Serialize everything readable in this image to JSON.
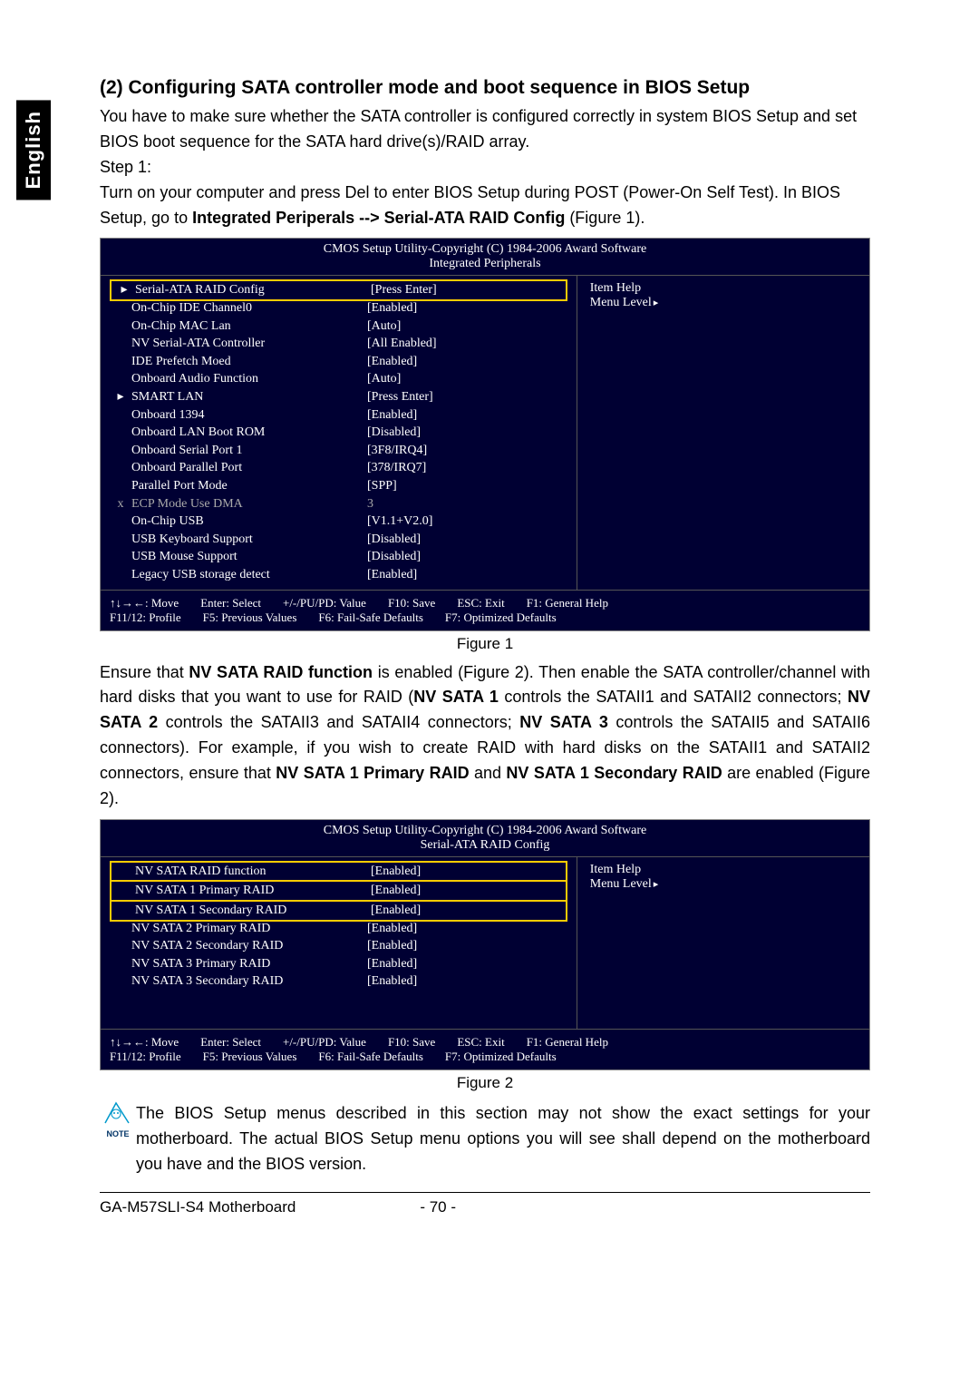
{
  "tab": "English",
  "section_title": "(2) Configuring SATA controller mode and boot sequence in BIOS Setup",
  "intro1": "You have to make sure whether the SATA controller is configured correctly in system BIOS Setup and set BIOS boot sequence for the SATA hard drive(s)/RAID array.",
  "step1": "Step 1:",
  "intro2a": "Turn on your computer and press Del to enter BIOS Setup during POST (Power-On Self Test). In BIOS Setup, go to ",
  "intro2b": "Integrated Periperals --> Serial-ATA RAID Config",
  "intro2c": " (Figure 1).",
  "bios1": {
    "header_line1": "CMOS Setup Utility-Copyright (C) 1984-2006 Award Software",
    "header_line2": "Integrated Peripherals",
    "help_title": "Item Help",
    "help_sub": "Menu Level",
    "rows": [
      {
        "ind": "▸",
        "label": "Serial-ATA RAID Config",
        "val": "[Press Enter]",
        "hl": true
      },
      {
        "ind": "",
        "label": "On-Chip IDE Channel0",
        "val": "[Enabled]"
      },
      {
        "ind": "",
        "label": "On-Chip MAC Lan",
        "val": "[Auto]"
      },
      {
        "ind": "",
        "label": "NV Serial-ATA Controller",
        "val": "[All Enabled]"
      },
      {
        "ind": "",
        "label": "IDE Prefetch Moed",
        "val": "[Enabled]"
      },
      {
        "ind": "",
        "label": "Onboard Audio Function",
        "val": "[Auto]"
      },
      {
        "ind": "▸",
        "label": "SMART LAN",
        "val": "[Press Enter]"
      },
      {
        "ind": "",
        "label": "Onboard 1394",
        "val": "[Enabled]"
      },
      {
        "ind": "",
        "label": "Onboard LAN Boot ROM",
        "val": "[Disabled]"
      },
      {
        "ind": "",
        "label": "Onboard Serial Port 1",
        "val": "[3F8/IRQ4]"
      },
      {
        "ind": "",
        "label": "Onboard Parallel Port",
        "val": "[378/IRQ7]"
      },
      {
        "ind": "",
        "label": "Parallel Port Mode",
        "val": "[SPP]"
      },
      {
        "ind": "x",
        "label": "ECP Mode Use DMA",
        "val": "3",
        "dim": true
      },
      {
        "ind": "",
        "label": "On-Chip USB",
        "val": "[V1.1+V2.0]"
      },
      {
        "ind": "",
        "label": "USB Keyboard Support",
        "val": "[Disabled]"
      },
      {
        "ind": "",
        "label": "USB Mouse Support",
        "val": "[Disabled]"
      },
      {
        "ind": "",
        "label": "Legacy USB storage detect",
        "val": "[Enabled]"
      }
    ],
    "footer": {
      "a": "↑↓→←: Move",
      "b": "Enter: Select",
      "c": "+/-/PU/PD: Value",
      "d": "F10: Save",
      "e": "ESC: Exit",
      "f": "F1: General Help",
      "g": "F11/12: Profile",
      "h": "F5: Previous Values",
      "i": "F6: Fail-Safe Defaults",
      "j": "F7: Optimized Defaults"
    }
  },
  "fig1": "Figure 1",
  "para2_parts": [
    {
      "t": "Ensure that "
    },
    {
      "t": "NV SATA RAID function",
      "b": true
    },
    {
      "t": " is enabled (Figure 2). Then enable the SATA controller/channel with hard disks that you want to use for RAID ("
    },
    {
      "t": "NV SATA 1",
      "b": true
    },
    {
      "t": " controls the SATAII1 and SATAII2 connectors; "
    },
    {
      "t": "NV SATA 2",
      "b": true
    },
    {
      "t": " controls the SATAII3 and SATAII4 connectors; "
    },
    {
      "t": "NV SATA 3",
      "b": true
    },
    {
      "t": " controls the SATAII5 and SATAII6 connectors). For example, if you wish to create RAID with hard disks on the SATAII1 and SATAII2 connectors, ensure that "
    },
    {
      "t": "NV SATA 1 Primary RAID",
      "b": true
    },
    {
      "t": " and "
    },
    {
      "t": "NV SATA 1 Secondary RAID",
      "b": true
    },
    {
      "t": " are enabled (Figure 2)."
    }
  ],
  "bios2": {
    "header_line1": "CMOS Setup Utility-Copyright (C) 1984-2006 Award Software",
    "header_line2": "Serial-ATA RAID Config",
    "help_title": "Item Help",
    "help_sub": "Menu Level",
    "rows": [
      {
        "ind": "",
        "label": "NV SATA RAID function",
        "val": "[Enabled]",
        "hl": true
      },
      {
        "ind": "",
        "label": "NV SATA 1 Primary RAID",
        "val": "[Enabled]",
        "hl": true
      },
      {
        "ind": "",
        "label": "NV SATA 1 Secondary RAID",
        "val": "[Enabled]",
        "hl": true
      },
      {
        "ind": "",
        "label": "NV SATA 2 Primary RAID",
        "val": "[Enabled]"
      },
      {
        "ind": "",
        "label": "NV SATA 2 Secondary RAID",
        "val": "[Enabled]"
      },
      {
        "ind": "",
        "label": "NV SATA 3 Primary RAID",
        "val": "[Enabled]"
      },
      {
        "ind": "",
        "label": "NV SATA 3 Secondary RAID",
        "val": "[Enabled]"
      }
    ],
    "footer": {
      "a": "↑↓→←: Move",
      "b": "Enter: Select",
      "c": "+/-/PU/PD: Value",
      "d": "F10: Save",
      "e": "ESC: Exit",
      "f": "F1: General Help",
      "g": "F11/12: Profile",
      "h": "F5: Previous Values",
      "i": "F6: Fail-Safe Defaults",
      "j": "F7: Optimized Defaults"
    }
  },
  "fig2": "Figure 2",
  "note_label": "NOTE",
  "note_text": "The BIOS Setup menus described in this section may not show the exact settings for your motherboard. The actual BIOS Setup menu options you will see shall depend on the motherboard you have and the BIOS version.",
  "footer_left": "GA-M57SLI-S4 Motherboard",
  "footer_page": "- 70 -"
}
